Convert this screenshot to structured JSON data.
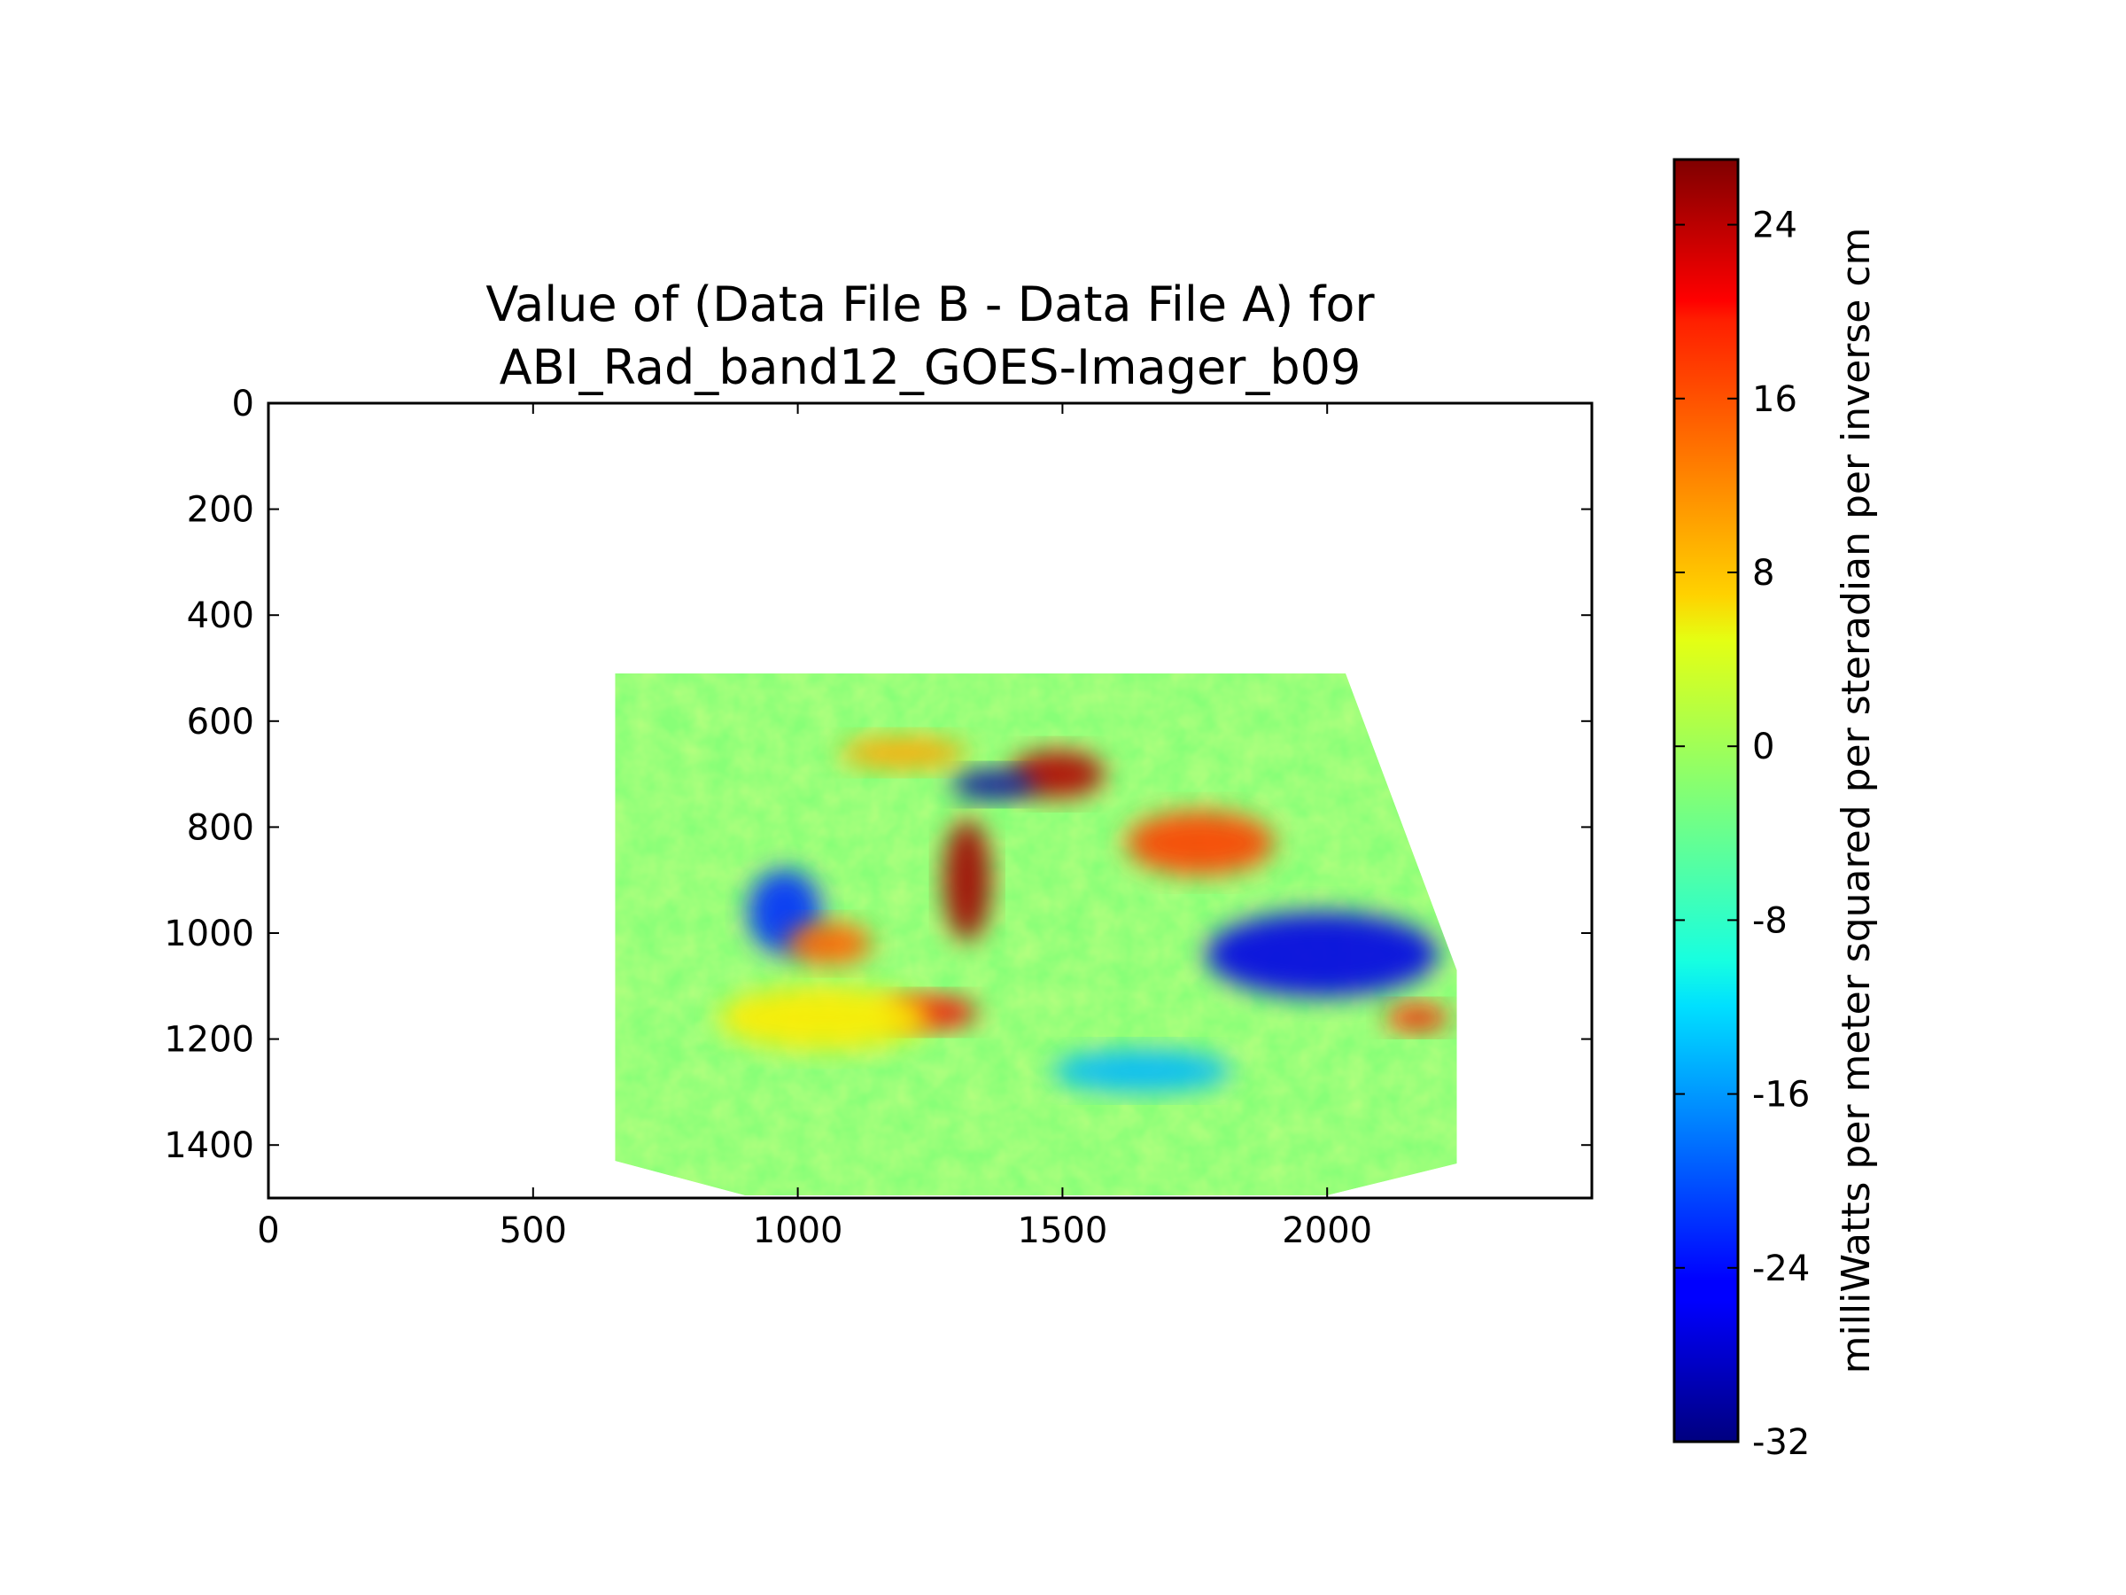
{
  "chart_data": {
    "type": "heatmap",
    "title": [
      "Value of (Data File B - Data File A) for",
      "ABI_Rad_band12_GOES-Imager_b09"
    ],
    "xlabel": "",
    "ylabel": "",
    "xlim": [
      0,
      2500
    ],
    "ylim": [
      1500,
      0
    ],
    "x_ticks": [
      {
        "value": 0,
        "label": "0"
      },
      {
        "value": 500,
        "label": "500"
      },
      {
        "value": 1000,
        "label": "1000"
      },
      {
        "value": 1500,
        "label": "1500"
      },
      {
        "value": 2000,
        "label": "2000"
      }
    ],
    "y_ticks": [
      {
        "value": 0,
        "label": "0"
      },
      {
        "value": 200,
        "label": "200"
      },
      {
        "value": 400,
        "label": "400"
      },
      {
        "value": 600,
        "label": "600"
      },
      {
        "value": 800,
        "label": "800"
      },
      {
        "value": 1000,
        "label": "1000"
      },
      {
        "value": 1200,
        "label": "1200"
      },
      {
        "value": 1400,
        "label": "1400"
      }
    ],
    "colormap": "jet",
    "colorbar": {
      "label": "milliWatts per meter squared per steradian per inverse cm",
      "range": [
        -32,
        27
      ],
      "ticks": [
        {
          "value": 24,
          "label": "24"
        },
        {
          "value": 16,
          "label": "16"
        },
        {
          "value": 8,
          "label": "8"
        },
        {
          "value": 0,
          "label": "0"
        },
        {
          "value": -8,
          "label": "-8"
        },
        {
          "value": -16,
          "label": "-16"
        },
        {
          "value": -24,
          "label": "-24"
        },
        {
          "value": -32,
          "label": "-32"
        }
      ]
    },
    "data_region_outline": [
      [
        655,
        510
      ],
      [
        2035,
        510
      ],
      [
        2245,
        1070
      ],
      [
        2245,
        1435
      ],
      [
        2000,
        1495
      ],
      [
        900,
        1495
      ],
      [
        655,
        1430
      ]
    ],
    "background_value": -2,
    "features": [
      {
        "value": 24,
        "x": 1490,
        "y": 700,
        "rx": 90,
        "ry": 45
      },
      {
        "value": 25,
        "x": 1320,
        "y": 900,
        "rx": 45,
        "ry": 115
      },
      {
        "value": -30,
        "x": 1370,
        "y": 720,
        "rx": 80,
        "ry": 28
      },
      {
        "value": -26,
        "x": 1990,
        "y": 1040,
        "rx": 220,
        "ry": 80
      },
      {
        "value": -22,
        "x": 975,
        "y": 960,
        "rx": 70,
        "ry": 80
      },
      {
        "value": 20,
        "x": 1250,
        "y": 1150,
        "rx": 90,
        "ry": 30
      },
      {
        "value": 16,
        "x": 1760,
        "y": 830,
        "rx": 140,
        "ry": 60
      },
      {
        "value": 18,
        "x": 2170,
        "y": 1160,
        "rx": 60,
        "ry": 25
      },
      {
        "value": -14,
        "x": 1650,
        "y": 1260,
        "rx": 170,
        "ry": 40
      },
      {
        "value": 6,
        "x": 1050,
        "y": 1160,
        "rx": 200,
        "ry": 60
      },
      {
        "value": 10,
        "x": 1200,
        "y": 660,
        "rx": 120,
        "ry": 30
      },
      {
        "value": 14,
        "x": 1060,
        "y": 1020,
        "rx": 80,
        "ry": 40
      }
    ]
  }
}
